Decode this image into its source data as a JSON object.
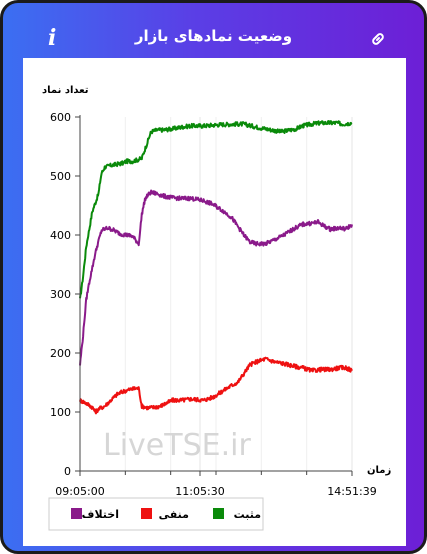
{
  "header": {
    "title": "وضعیت نمادهای بازار",
    "info_icon": "info-icon",
    "link_icon": "link-icon"
  },
  "watermark": "LiveTSE.ir",
  "colors": {
    "positive": "#0a8a0a",
    "negative": "#ee1111",
    "difference": "#8a1a8a",
    "frame_left": "#3b6ff2",
    "frame_right": "#6d1fd6"
  },
  "chart_data": {
    "type": "line",
    "ylabel": "تعداد نماد",
    "xlabel": "زمان",
    "ylim": [
      0,
      600
    ],
    "yticks": [
      "0",
      "100",
      "200",
      "300",
      "400",
      "500",
      "600"
    ],
    "x_ticks": [
      "09:05:00",
      "11:05:30",
      "14:51:39"
    ],
    "grid": "vertical",
    "legend_position": "bottom",
    "series": [
      {
        "name": "مثبت",
        "color": "#0a8a0a",
        "points": [
          [
            0,
            290
          ],
          [
            1,
            330
          ],
          [
            2,
            380
          ],
          [
            3,
            410
          ],
          [
            4,
            440
          ],
          [
            5,
            455
          ],
          [
            6,
            470
          ],
          [
            6.5,
            490
          ],
          [
            7,
            505
          ],
          [
            8,
            515
          ],
          [
            10,
            518
          ],
          [
            12,
            520
          ],
          [
            14,
            522
          ],
          [
            15,
            525
          ],
          [
            17,
            525
          ],
          [
            19,
            528
          ],
          [
            20,
            530
          ],
          [
            21,
            545
          ],
          [
            22,
            560
          ],
          [
            23,
            575
          ],
          [
            25,
            578
          ],
          [
            27,
            578
          ],
          [
            30,
            580
          ],
          [
            33,
            583
          ],
          [
            36,
            585
          ],
          [
            40,
            585
          ],
          [
            45,
            587
          ],
          [
            50,
            588
          ],
          [
            53,
            588
          ],
          [
            57,
            583
          ],
          [
            60,
            580
          ],
          [
            63,
            577
          ],
          [
            65,
            575
          ],
          [
            67,
            577
          ],
          [
            70,
            580
          ],
          [
            72,
            585
          ],
          [
            75,
            588
          ],
          [
            78,
            590
          ],
          [
            80,
            590
          ],
          [
            83,
            590
          ],
          [
            85,
            588
          ],
          [
            88,
            590
          ]
        ]
      },
      {
        "name": "منفی",
        "color": "#ee1111",
        "points": [
          [
            0,
            120
          ],
          [
            2,
            115
          ],
          [
            4,
            108
          ],
          [
            5,
            100
          ],
          [
            6,
            105
          ],
          [
            8,
            110
          ],
          [
            10,
            120
          ],
          [
            12,
            130
          ],
          [
            14,
            135
          ],
          [
            16,
            138
          ],
          [
            18,
            140
          ],
          [
            19,
            140
          ],
          [
            20,
            110
          ],
          [
            22,
            107
          ],
          [
            24,
            108
          ],
          [
            26,
            110
          ],
          [
            28,
            115
          ],
          [
            30,
            120
          ],
          [
            33,
            120
          ],
          [
            36,
            122
          ],
          [
            40,
            120
          ],
          [
            43,
            125
          ],
          [
            46,
            135
          ],
          [
            49,
            145
          ],
          [
            51,
            150
          ],
          [
            53,
            165
          ],
          [
            55,
            180
          ],
          [
            57,
            185
          ],
          [
            60,
            190
          ],
          [
            63,
            185
          ],
          [
            66,
            182
          ],
          [
            69,
            178
          ],
          [
            72,
            175
          ],
          [
            75,
            170
          ],
          [
            78,
            172
          ],
          [
            81,
            172
          ],
          [
            84,
            175
          ],
          [
            86,
            175
          ],
          [
            88,
            170
          ]
        ]
      },
      {
        "name": "اختلاف",
        "color": "#8a1a8a",
        "points": [
          [
            0,
            180
          ],
          [
            1,
            230
          ],
          [
            2,
            290
          ],
          [
            3,
            320
          ],
          [
            4,
            345
          ],
          [
            5,
            370
          ],
          [
            6,
            390
          ],
          [
            7,
            408
          ],
          [
            9,
            412
          ],
          [
            11,
            408
          ],
          [
            13,
            402
          ],
          [
            15,
            400
          ],
          [
            17,
            398
          ],
          [
            19,
            385
          ],
          [
            20,
            435
          ],
          [
            21,
            460
          ],
          [
            22,
            468
          ],
          [
            23,
            472
          ],
          [
            25,
            470
          ],
          [
            27,
            466
          ],
          [
            30,
            463
          ],
          [
            33,
            462
          ],
          [
            36,
            462
          ],
          [
            40,
            458
          ],
          [
            43,
            452
          ],
          [
            46,
            442
          ],
          [
            49,
            430
          ],
          [
            51,
            415
          ],
          [
            53,
            400
          ],
          [
            55,
            388
          ],
          [
            57,
            385
          ],
          [
            60,
            385
          ],
          [
            63,
            392
          ],
          [
            66,
            400
          ],
          [
            69,
            410
          ],
          [
            72,
            418
          ],
          [
            75,
            420
          ],
          [
            77,
            422
          ],
          [
            79,
            415
          ],
          [
            81,
            410
          ],
          [
            84,
            412
          ],
          [
            86,
            410
          ],
          [
            88,
            418
          ]
        ]
      }
    ]
  }
}
